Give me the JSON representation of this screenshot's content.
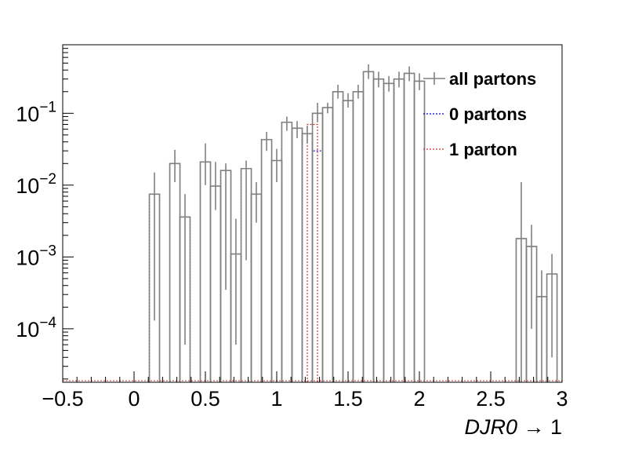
{
  "chart_data": {
    "type": "histogram",
    "x_axis": {
      "label": "DJR0 → 1",
      "label_main": "DJR0",
      "label_suffix": " → 1",
      "range": [
        -0.5,
        3.0
      ],
      "ticks": [
        -0.5,
        0,
        0.5,
        1,
        1.5,
        2,
        2.5,
        3
      ],
      "tick_labels": [
        "−0.5",
        "0",
        "0.5",
        "1",
        "1.5",
        "2",
        "2.5",
        "3"
      ]
    },
    "y_axis": {
      "scale": "log",
      "range": [
        1.8e-05,
        0.9
      ],
      "ticks": [
        0.0001,
        0.001,
        0.01,
        0.1
      ],
      "tick_labels": [
        {
          "base": "10",
          "exp": "−4"
        },
        {
          "base": "10",
          "exp": "−3"
        },
        {
          "base": "10",
          "exp": "−2"
        },
        {
          "base": "10",
          "exp": "−1"
        }
      ]
    },
    "bin_width": 0.0714,
    "floor": 1.8e-05,
    "legend": {
      "position": "top-right",
      "entries": [
        {
          "label": "all partons",
          "color": "#808080",
          "style": "solid"
        },
        {
          "label": "0 partons",
          "color": "#0000cc",
          "style": "dotted"
        },
        {
          "label": "1 parton",
          "color": "#cc3333",
          "style": "dotted"
        }
      ]
    },
    "series": [
      {
        "name": "all partons",
        "color": "#808080",
        "bins": [
          {
            "x": 0.143,
            "y": 0.0075,
            "err": [
              0.00013,
              0.015
            ]
          },
          {
            "x": 0.286,
            "y": 0.02,
            "err": [
              0.011,
              0.031
            ]
          },
          {
            "x": 0.357,
            "y": 0.0036,
            "err": [
              6e-05,
              0.0075
            ]
          },
          {
            "x": 0.5,
            "y": 0.021,
            "err": [
              0.01,
              0.038
            ]
          },
          {
            "x": 0.571,
            "y": 0.0097,
            "err": [
              0.0045,
              0.021
            ]
          },
          {
            "x": 0.643,
            "y": 0.016,
            "err": [
              0.00035,
              0.02
            ]
          },
          {
            "x": 0.714,
            "y": 0.0011,
            "err": [
              6e-05,
              0.0034
            ]
          },
          {
            "x": 0.786,
            "y": 0.017,
            "err": [
              0.0009,
              0.022
            ]
          },
          {
            "x": 0.857,
            "y": 0.0075,
            "err": [
              0.003,
              0.011
            ]
          },
          {
            "x": 0.929,
            "y": 0.043,
            "err": [
              0.03,
              0.055
            ]
          },
          {
            "x": 1.0,
            "y": 0.022,
            "err": [
              0.011,
              0.032
            ]
          },
          {
            "x": 1.071,
            "y": 0.075,
            "err": [
              0.057,
              0.09
            ]
          },
          {
            "x": 1.143,
            "y": 0.062,
            "err": [
              0.045,
              0.078
            ]
          },
          {
            "x": 1.214,
            "y": 0.052,
            "err": [
              0.038,
              0.067
            ]
          },
          {
            "x": 1.286,
            "y": 0.1,
            "err": [
              0.075,
              0.14
            ]
          },
          {
            "x": 1.357,
            "y": 0.12,
            "err": [
              0.1,
              0.14
            ]
          },
          {
            "x": 1.429,
            "y": 0.2,
            "err": [
              0.16,
              0.25
            ]
          },
          {
            "x": 1.5,
            "y": 0.15,
            "err": [
              0.12,
              0.19
            ]
          },
          {
            "x": 1.571,
            "y": 0.2,
            "err": [
              0.16,
              0.25
            ]
          },
          {
            "x": 1.643,
            "y": 0.38,
            "err": [
              0.3,
              0.48
            ]
          },
          {
            "x": 1.714,
            "y": 0.3,
            "err": [
              0.23,
              0.38
            ]
          },
          {
            "x": 1.786,
            "y": 0.26,
            "err": [
              0.2,
              0.33
            ]
          },
          {
            "x": 1.857,
            "y": 0.3,
            "err": [
              0.23,
              0.38
            ]
          },
          {
            "x": 1.929,
            "y": 0.36,
            "err": [
              0.28,
              0.45
            ]
          },
          {
            "x": 2.0,
            "y": 0.28,
            "err": [
              0.21,
              0.36
            ]
          },
          {
            "x": 2.714,
            "y": 0.0018,
            "err": [
              0.0,
              0.011
            ]
          },
          {
            "x": 2.786,
            "y": 0.0014,
            "err": [
              0.0001,
              0.0028
            ]
          },
          {
            "x": 2.857,
            "y": 0.00028,
            "err": [
              0.0,
              0.00065
            ]
          },
          {
            "x": 2.929,
            "y": 0.00058,
            "err": [
              4e-05,
              0.0011
            ]
          }
        ]
      },
      {
        "name": "0 partons",
        "color": "#0000cc",
        "bins": [
          {
            "x": 0.143,
            "y": 0.0075
          },
          {
            "x": 0.286,
            "y": 0.02
          },
          {
            "x": 0.357,
            "y": 0.0036
          },
          {
            "x": 0.5,
            "y": 0.021
          },
          {
            "x": 0.571,
            "y": 0.0097
          },
          {
            "x": 0.643,
            "y": 0.016
          },
          {
            "x": 0.714,
            "y": 0.0011
          },
          {
            "x": 0.786,
            "y": 0.017
          },
          {
            "x": 0.857,
            "y": 0.0075
          },
          {
            "x": 0.929,
            "y": 0.043
          },
          {
            "x": 1.0,
            "y": 0.022
          },
          {
            "x": 1.071,
            "y": 0.075
          },
          {
            "x": 1.143,
            "y": 0.062
          },
          {
            "x": 1.214,
            "y": 0.052
          },
          {
            "x": 1.286,
            "y": 0.03
          }
        ]
      },
      {
        "name": "1 parton",
        "color": "#cc3333",
        "bins": [
          {
            "x": 1.25,
            "y": 0.07
          },
          {
            "x": 1.357,
            "y": 0.12
          },
          {
            "x": 1.429,
            "y": 0.2
          },
          {
            "x": 1.5,
            "y": 0.15
          },
          {
            "x": 1.571,
            "y": 0.2
          },
          {
            "x": 1.643,
            "y": 0.38
          },
          {
            "x": 1.714,
            "y": 0.3
          },
          {
            "x": 1.786,
            "y": 0.26
          },
          {
            "x": 1.857,
            "y": 0.3
          },
          {
            "x": 1.929,
            "y": 0.36
          },
          {
            "x": 2.0,
            "y": 0.28
          },
          {
            "x": 2.714,
            "y": 0.0018
          },
          {
            "x": 2.786,
            "y": 0.0014
          },
          {
            "x": 2.857,
            "y": 0.00028
          },
          {
            "x": 2.929,
            "y": 0.00058
          }
        ]
      }
    ]
  }
}
